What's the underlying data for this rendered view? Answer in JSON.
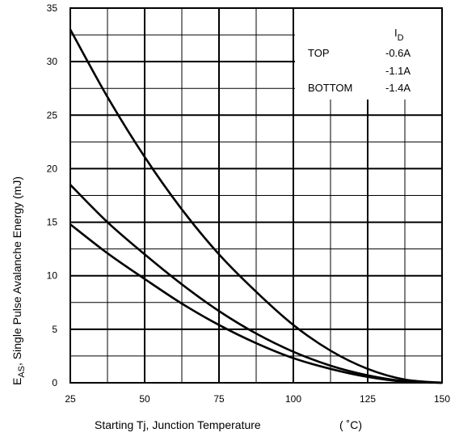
{
  "chart_data": {
    "type": "line",
    "xlabel": "Starting Tj, Junction Temperature",
    "xlabel_unit": "( ˚C)",
    "ylabel_main": "E",
    "ylabel_sub": "AS",
    "ylabel_rest": ", Single Pulse Avalanche Energy (mJ)",
    "xlim": [
      25,
      150
    ],
    "ylim": [
      0,
      35
    ],
    "xticks": [
      25,
      50,
      75,
      100,
      125,
      150
    ],
    "yticks": [
      0,
      5,
      10,
      15,
      20,
      25,
      30,
      35
    ],
    "grid": true,
    "legend": {
      "placement": "top-right",
      "header_main": "I",
      "header_sub": "D",
      "rows": [
        {
          "label": "TOP",
          "value": "-0.6A"
        },
        {
          "label": "",
          "value": "-1.1A"
        },
        {
          "label": "BOTTOM",
          "value": "-1.4A"
        }
      ]
    },
    "series": [
      {
        "x": [
          25,
          37.5,
          50,
          62.5,
          75,
          87.5,
          100,
          112.5,
          125,
          137.5,
          150
        ],
        "values": [
          33,
          26.7,
          21.1,
          16.2,
          12.0,
          8.5,
          5.4,
          3.0,
          1.3,
          0.3,
          0
        ]
      },
      {
        "x": [
          25,
          37.5,
          50,
          62.5,
          75,
          87.5,
          100,
          112.5,
          125,
          137.5,
          150
        ],
        "values": [
          18.5,
          15.0,
          12.0,
          9.2,
          6.7,
          4.6,
          2.9,
          1.6,
          0.7,
          0.15,
          0
        ]
      },
      {
        "x": [
          25,
          37.5,
          50,
          62.5,
          75,
          87.5,
          100,
          112.5,
          125,
          137.5,
          150
        ],
        "values": [
          14.8,
          12.1,
          9.7,
          7.4,
          5.4,
          3.7,
          2.3,
          1.3,
          0.55,
          0.1,
          0
        ]
      }
    ]
  }
}
